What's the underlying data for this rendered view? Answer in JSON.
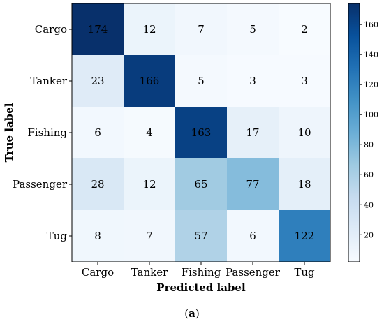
{
  "chart_data": {
    "type": "heatmap",
    "title": "",
    "xlabel": "Predicted label",
    "ylabel": "True label",
    "x_categories": [
      "Cargo",
      "Tanker",
      "Fishing",
      "Passenger",
      "Tug"
    ],
    "y_categories": [
      "Cargo",
      "Tanker",
      "Fishing",
      "Passenger",
      "Tug"
    ],
    "values": [
      [
        174,
        12,
        7,
        5,
        2
      ],
      [
        23,
        166,
        5,
        3,
        3
      ],
      [
        6,
        4,
        163,
        17,
        10
      ],
      [
        28,
        12,
        65,
        77,
        18
      ],
      [
        8,
        7,
        57,
        6,
        122
      ]
    ],
    "colorscale": "Blues",
    "color_range": [
      2,
      174
    ],
    "colorbar_ticks": [
      20,
      40,
      60,
      80,
      100,
      120,
      140,
      160
    ],
    "colors": {
      "low": "#f7fbff",
      "high": "#08306b"
    }
  },
  "caption": {
    "open": "(",
    "label": "a",
    "close": ")"
  }
}
